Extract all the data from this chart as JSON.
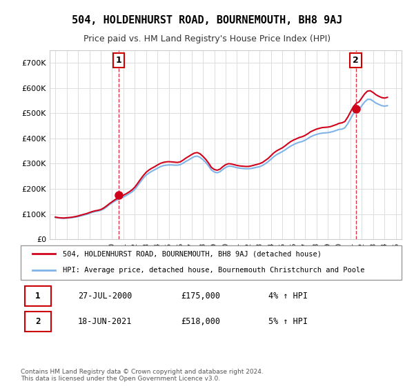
{
  "title": "504, HOLDENHURST ROAD, BOURNEMOUTH, BH8 9AJ",
  "subtitle": "Price paid vs. HM Land Registry's House Price Index (HPI)",
  "ylabel": "",
  "ylim": [
    0,
    750000
  ],
  "yticks": [
    0,
    100000,
    200000,
    300000,
    400000,
    500000,
    600000,
    700000
  ],
  "ytick_labels": [
    "£0",
    "£100K",
    "£200K",
    "£300K",
    "£400K",
    "£500K",
    "£600K",
    "£700K"
  ],
  "transaction1": {
    "date_num": 2000.57,
    "price": 175000,
    "label": "1"
  },
  "transaction2": {
    "date_num": 2021.46,
    "price": 518000,
    "label": "2"
  },
  "legend_line1": "504, HOLDENHURST ROAD, BOURNEMOUTH, BH8 9AJ (detached house)",
  "legend_line2": "HPI: Average price, detached house, Bournemouth Christchurch and Poole",
  "table_row1": [
    "1",
    "27-JUL-2000",
    "£175,000",
    "4% ↑ HPI"
  ],
  "table_row2": [
    "2",
    "18-JUN-2021",
    "£518,000",
    "5% ↑ HPI"
  ],
  "footnote": "Contains HM Land Registry data © Crown copyright and database right 2024.\nThis data is licensed under the Open Government Licence v3.0.",
  "line_color_red": "#d0021b",
  "line_color_blue": "#7fb3e8",
  "background_color": "#ffffff",
  "grid_color": "#dddddd",
  "hpi_data": {
    "years": [
      1995.0,
      1995.25,
      1995.5,
      1995.75,
      1996.0,
      1996.25,
      1996.5,
      1996.75,
      1997.0,
      1997.25,
      1997.5,
      1997.75,
      1998.0,
      1998.25,
      1998.5,
      1998.75,
      1999.0,
      1999.25,
      1999.5,
      1999.75,
      2000.0,
      2000.25,
      2000.5,
      2000.75,
      2001.0,
      2001.25,
      2001.5,
      2001.75,
      2002.0,
      2002.25,
      2002.5,
      2002.75,
      2003.0,
      2003.25,
      2003.5,
      2003.75,
      2004.0,
      2004.25,
      2004.5,
      2004.75,
      2005.0,
      2005.25,
      2005.5,
      2005.75,
      2006.0,
      2006.25,
      2006.5,
      2006.75,
      2007.0,
      2007.25,
      2007.5,
      2007.75,
      2008.0,
      2008.25,
      2008.5,
      2008.75,
      2009.0,
      2009.25,
      2009.5,
      2009.75,
      2010.0,
      2010.25,
      2010.5,
      2010.75,
      2011.0,
      2011.25,
      2011.5,
      2011.75,
      2012.0,
      2012.25,
      2012.5,
      2012.75,
      2013.0,
      2013.25,
      2013.5,
      2013.75,
      2014.0,
      2014.25,
      2014.5,
      2014.75,
      2015.0,
      2015.25,
      2015.5,
      2015.75,
      2016.0,
      2016.25,
      2016.5,
      2016.75,
      2017.0,
      2017.25,
      2017.5,
      2017.75,
      2018.0,
      2018.25,
      2018.5,
      2018.75,
      2019.0,
      2019.25,
      2019.5,
      2019.75,
      2020.0,
      2020.25,
      2020.5,
      2020.75,
      2021.0,
      2021.25,
      2021.5,
      2021.75,
      2022.0,
      2022.25,
      2022.5,
      2022.75,
      2023.0,
      2023.25,
      2023.5,
      2023.75,
      2024.0,
      2024.25
    ],
    "values": [
      87000,
      85000,
      84000,
      83500,
      84000,
      85000,
      86500,
      88000,
      90000,
      93000,
      96000,
      99000,
      103000,
      107000,
      110000,
      112000,
      115000,
      120000,
      128000,
      137000,
      145000,
      152000,
      158000,
      163000,
      168000,
      174000,
      181000,
      188000,
      198000,
      213000,
      228000,
      243000,
      255000,
      263000,
      270000,
      276000,
      282000,
      288000,
      292000,
      294000,
      295000,
      295000,
      294000,
      294000,
      296000,
      302000,
      309000,
      315000,
      322000,
      328000,
      330000,
      325000,
      316000,
      305000,
      291000,
      275000,
      267000,
      264000,
      268000,
      277000,
      285000,
      290000,
      290000,
      287000,
      284000,
      282000,
      281000,
      280000,
      280000,
      281000,
      283000,
      286000,
      288000,
      293000,
      300000,
      308000,
      318000,
      328000,
      336000,
      342000,
      348000,
      355000,
      363000,
      370000,
      376000,
      381000,
      385000,
      388000,
      393000,
      400000,
      407000,
      412000,
      416000,
      419000,
      421000,
      422000,
      423000,
      425000,
      428000,
      432000,
      436000,
      437000,
      442000,
      458000,
      478000,
      498000,
      510000,
      515000,
      530000,
      545000,
      555000,
      555000,
      548000,
      540000,
      535000,
      530000,
      528000,
      530000
    ],
    "red_values": [
      88000,
      86000,
      85000,
      84500,
      85500,
      86500,
      88000,
      90000,
      92500,
      96000,
      99000,
      102000,
      106000,
      110000,
      113000,
      115000,
      118000,
      124000,
      132000,
      141000,
      149000,
      157000,
      163000,
      168000,
      175000,
      181000,
      188000,
      196000,
      207000,
      222000,
      238000,
      253000,
      266000,
      275000,
      282000,
      288000,
      295000,
      301000,
      305000,
      307000,
      308000,
      307000,
      306000,
      305000,
      307000,
      314000,
      322000,
      329000,
      336000,
      342000,
      344000,
      339000,
      329000,
      317000,
      302000,
      285000,
      277000,
      274000,
      278000,
      288000,
      296000,
      300000,
      299000,
      296000,
      293000,
      291000,
      290000,
      289000,
      289000,
      291000,
      294000,
      297000,
      300000,
      305000,
      313000,
      321000,
      332000,
      343000,
      351000,
      357000,
      363000,
      371000,
      380000,
      388000,
      394000,
      399000,
      404000,
      407000,
      412000,
      419000,
      427000,
      432000,
      437000,
      440000,
      443000,
      444000,
      445000,
      447000,
      451000,
      455000,
      460000,
      462000,
      467000,
      484000,
      505000,
      526000,
      539000,
      545000,
      561000,
      577000,
      588000,
      589000,
      582000,
      573000,
      567000,
      562000,
      560000,
      563000
    ]
  }
}
